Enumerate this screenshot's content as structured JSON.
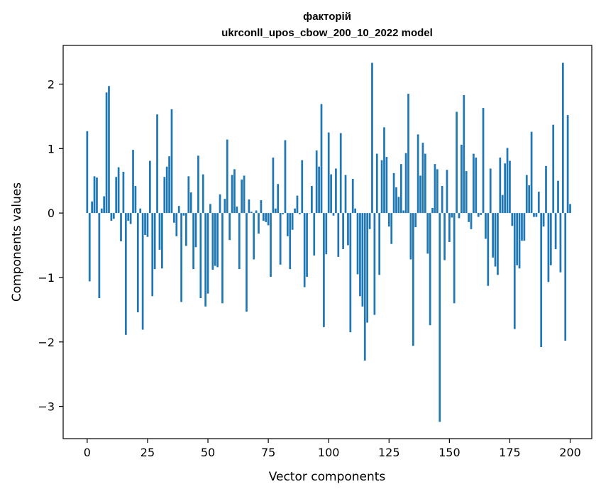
{
  "chart_data": {
    "type": "bar",
    "title": "факторій",
    "subtitle": "ukrconll_upos_cbow_200_10_2022 model",
    "xlabel": "Vector components",
    "ylabel": "Components values",
    "xlim": [
      -9.95,
      208.95
    ],
    "ylim": [
      -3.5,
      2.6
    ],
    "xticks": [
      0,
      25,
      50,
      75,
      100,
      125,
      150,
      175,
      200
    ],
    "yticks": [
      -3,
      -2,
      -1,
      0,
      1,
      2
    ],
    "xtick_labels": [
      "0",
      "25",
      "50",
      "75",
      "100",
      "125",
      "150",
      "175",
      "200"
    ],
    "ytick_labels": [
      "−3",
      "−2",
      "−1",
      "0",
      "1",
      "2"
    ],
    "grid": false,
    "bar_color": "#1f77b4",
    "values": [
      1.27,
      -1.06,
      0.18,
      0.57,
      0.55,
      -1.32,
      0.07,
      0.26,
      1.87,
      1.97,
      -0.12,
      -0.09,
      0.56,
      0.71,
      -0.44,
      0.64,
      -1.89,
      -0.12,
      -0.17,
      0.98,
      0.42,
      -1.54,
      0.07,
      -1.81,
      -0.34,
      -0.37,
      0.81,
      -1.29,
      -0.87,
      1.53,
      -0.57,
      -0.86,
      0.56,
      0.72,
      0.88,
      1.61,
      -0.15,
      -0.36,
      0.11,
      -1.38,
      -0.04,
      -0.51,
      0.57,
      0.32,
      -0.87,
      -0.53,
      0.89,
      -1.32,
      0.6,
      -1.45,
      -1.25,
      0.14,
      -0.88,
      -0.82,
      -0.84,
      0.29,
      -1.4,
      0.22,
      1.14,
      -0.42,
      0.59,
      0.68,
      0.1,
      -0.87,
      0.52,
      0.58,
      -1.53,
      0.21,
      0.02,
      -0.72,
      0.04,
      -0.32,
      0.2,
      -0.12,
      -0.14,
      -0.19,
      -0.99,
      0.86,
      0.07,
      0.45,
      -0.8,
      -0.02,
      1.13,
      -0.36,
      -0.87,
      -0.26,
      0.07,
      0.27,
      -0.02,
      0.82,
      -1.15,
      -0.99,
      0.0,
      0.42,
      -0.66,
      0.97,
      0.72,
      1.69,
      -1.77,
      -0.64,
      1.25,
      0.6,
      -0.04,
      0.69,
      -0.68,
      1.24,
      -0.56,
      0.59,
      -0.5,
      -1.85,
      0.53,
      0.07,
      -0.95,
      -1.29,
      -1.45,
      -2.29,
      -1.7,
      -0.25,
      2.33,
      -1.58,
      0.92,
      -0.96,
      0.82,
      1.33,
      0.87,
      -0.21,
      -0.48,
      0.62,
      0.4,
      0.25,
      0.76,
      0.04,
      0.93,
      1.85,
      -0.72,
      -2.06,
      -0.22,
      1.22,
      0.58,
      1.09,
      0.92,
      -0.63,
      -1.74,
      0.08,
      0.76,
      0.68,
      -3.24,
      0.42,
      -0.73,
      0.67,
      -0.45,
      -0.07,
      -1.4,
      1.57,
      -0.08,
      1.06,
      1.83,
      0.65,
      -0.14,
      -0.25,
      0.92,
      0.86,
      -0.06,
      -0.03,
      1.63,
      -0.4,
      -1.13,
      0.69,
      -0.69,
      -0.83,
      -0.96,
      0.86,
      0.28,
      0.77,
      1.01,
      0.81,
      -0.2,
      -1.8,
      -0.81,
      -0.86,
      -0.43,
      -0.43,
      0.59,
      0.43,
      1.26,
      -0.06,
      -0.06,
      0.33,
      -2.08,
      -0.21,
      0.73,
      -1.07,
      -0.81,
      1.37,
      -0.56,
      0.5,
      -0.92,
      2.33,
      -1.98,
      1.52,
      0.14
    ]
  }
}
